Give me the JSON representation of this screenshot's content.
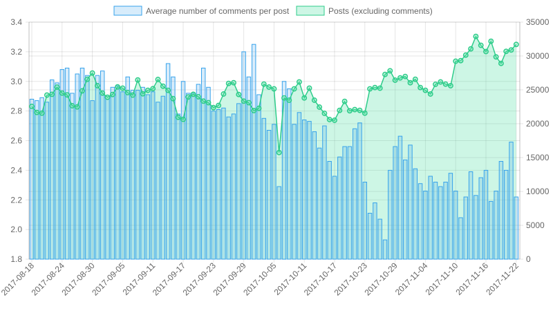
{
  "chart_data": {
    "type": "bar",
    "x_start_date": "2017-08-18",
    "x_tick_labels": [
      "2017-08-18",
      "2017-08-24",
      "2017-08-30",
      "2017-09-05",
      "2017-09-11",
      "2017-09-17",
      "2017-09-23",
      "2017-09-29",
      "2017-10-05",
      "2017-10-11",
      "2017-10-17",
      "2017-10-23",
      "2017-10-29",
      "2017-11-04",
      "2017-11-10",
      "2017-11-16",
      "2017-11-22"
    ],
    "legend_position": "top",
    "grid": true,
    "y_left": {
      "min": 1.8,
      "max": 3.4,
      "step": 0.2,
      "ticks": [
        "1.8",
        "2.0",
        "2.2",
        "2.4",
        "2.6",
        "2.8",
        "3.0",
        "3.2",
        "3.4"
      ]
    },
    "y_right": {
      "min": 0,
      "max": 35000,
      "step": 5000,
      "ticks": [
        "0",
        "5000",
        "10000",
        "15000",
        "20000",
        "25000",
        "30000",
        "35000"
      ]
    },
    "series": [
      {
        "name": "Average number of comments per post",
        "type": "bar",
        "axis": "left",
        "color": "#36a2eb",
        "fill": "rgba(54,162,235,0.2)",
        "values": [
          2.88,
          2.87,
          2.89,
          2.86,
          3.01,
          2.99,
          3.08,
          3.09,
          2.92,
          3.05,
          3.09,
          3.04,
          2.87,
          3.04,
          3.07,
          2.88,
          2.96,
          2.97,
          2.93,
          3.03,
          2.94,
          2.94,
          2.96,
          2.91,
          2.93,
          2.86,
          2.9,
          3.12,
          3.03,
          2.78,
          3.0,
          2.92,
          2.92,
          2.98,
          3.09,
          2.96,
          2.8,
          2.81,
          2.82,
          2.76,
          2.78,
          2.85,
          3.2,
          3.03,
          3.25,
          2.91,
          2.75,
          2.67,
          2.71,
          2.29,
          3.0,
          2.95,
          2.71,
          2.79,
          2.74,
          2.73,
          2.66,
          2.55,
          2.7,
          2.46,
          2.36,
          2.49,
          2.56,
          2.56,
          2.68,
          2.72,
          2.32,
          2.11,
          2.18,
          2.07,
          1.93,
          2.4,
          2.56,
          2.63,
          2.47,
          2.57,
          2.41,
          2.31,
          2.26,
          2.36,
          2.32,
          2.29,
          2.32,
          2.38,
          2.26,
          2.08,
          2.22,
          2.39,
          2.23,
          2.35,
          2.4,
          2.19,
          2.26,
          2.46,
          2.4,
          2.59,
          2.22
        ]
      },
      {
        "name": "Posts (excluding comments)",
        "type": "area",
        "axis": "right",
        "color": "#2ecc8a",
        "fill": "rgba(75,222,160,0.28)",
        "values": [
          22550,
          21660,
          21560,
          24220,
          24350,
          25400,
          24520,
          24250,
          22650,
          22480,
          24860,
          26560,
          27480,
          25610,
          24520,
          23910,
          24320,
          25440,
          25240,
          24590,
          24220,
          26460,
          24420,
          24930,
          25170,
          26530,
          25540,
          24930,
          23700,
          20950,
          20640,
          23950,
          24350,
          23980,
          23340,
          23100,
          22380,
          22690,
          24390,
          25950,
          26050,
          24320,
          23340,
          23100,
          21940,
          22280,
          25850,
          25410,
          25140,
          15750,
          23810,
          23470,
          25140,
          26160,
          23810,
          25240,
          23470,
          22450,
          21530,
          20610,
          20510,
          21970,
          23300,
          21910,
          22080,
          21970,
          21560,
          25140,
          25340,
          25240,
          27280,
          27820,
          26430,
          26770,
          26970,
          26050,
          26560,
          25340,
          24930,
          24390,
          25820,
          26160,
          25850,
          25610,
          29220,
          29320,
          30130,
          31050,
          32890,
          31570,
          30650,
          32170,
          29870,
          28910,
          30680,
          30890,
          31700
        ]
      }
    ]
  }
}
